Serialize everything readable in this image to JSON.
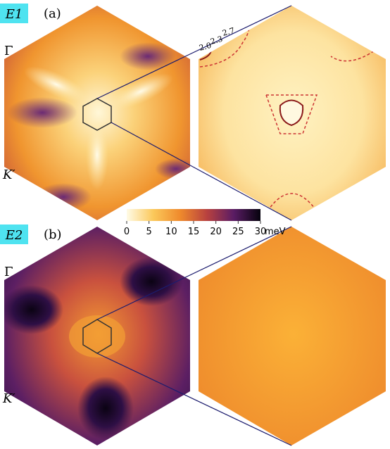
{
  "panels": [
    {
      "energy": "E1",
      "label": "(a)",
      "point_top": "Γ",
      "point_bottom": "K′",
      "contour_labels": [
        "2.0",
        "2.3",
        "2.7"
      ]
    },
    {
      "energy": "E2",
      "label": "(b)",
      "point_top": "Γ",
      "point_bottom": "K′"
    }
  ],
  "colorbar": {
    "lim": [
      0,
      30
    ],
    "ticks": [
      0,
      5,
      10,
      15,
      20,
      25,
      30
    ],
    "unit": "meV"
  }
}
